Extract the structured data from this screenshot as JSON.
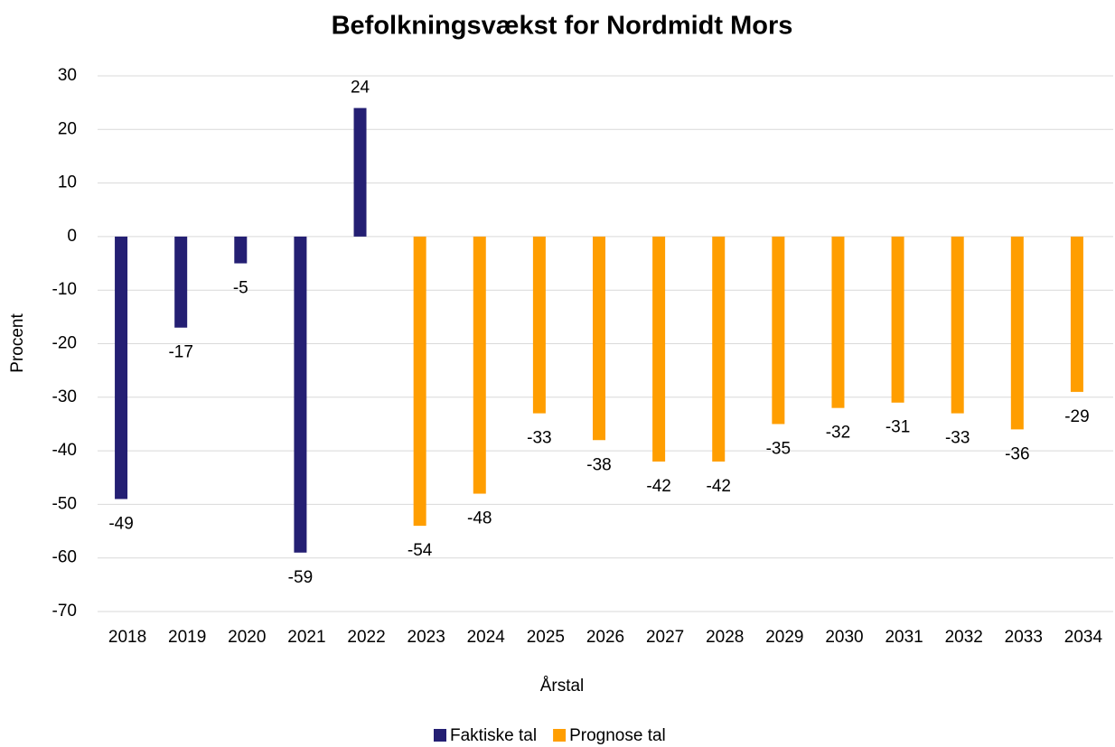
{
  "chart_data": {
    "type": "bar",
    "title": "Befolkningsvækst for Nordmidt Mors",
    "x_label": "Årstal",
    "y_label": "Procent",
    "categories": [
      "2018",
      "2019",
      "2020",
      "2021",
      "2022",
      "2023",
      "2024",
      "2025",
      "2026",
      "2027",
      "2028",
      "2029",
      "2030",
      "2031",
      "2032",
      "2033",
      "2034"
    ],
    "series": [
      {
        "name": "Faktiske tal",
        "color": "#241f73",
        "values": [
          -49,
          -17,
          -5,
          -59,
          24,
          null,
          null,
          null,
          null,
          null,
          null,
          null,
          null,
          null,
          null,
          null,
          null
        ]
      },
      {
        "name": "Prognose tal",
        "color": "#ff9e00",
        "values": [
          null,
          null,
          null,
          null,
          null,
          -54,
          -48,
          -33,
          -38,
          -42,
          -42,
          -35,
          -32,
          -31,
          -33,
          -36,
          -29
        ]
      }
    ],
    "ylim": [
      -70,
      30
    ],
    "yticks": [
      -70,
      -60,
      -50,
      -40,
      -30,
      -20,
      -10,
      0,
      10,
      20,
      30
    ],
    "grid": true,
    "legend": "bottom"
  }
}
